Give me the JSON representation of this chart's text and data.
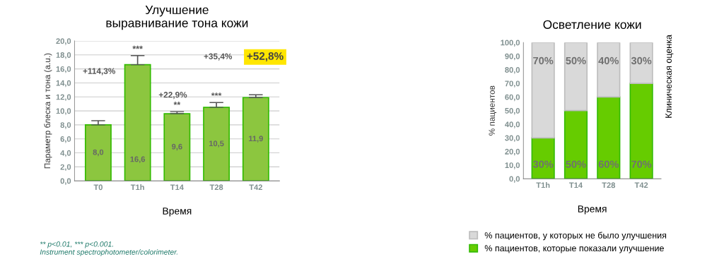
{
  "chart_data": [
    {
      "type": "bar",
      "title": "Улучшение\nвыравнивание тона кожи",
      "xlabel": "Время",
      "ylabel": "Параметр блеска и тона (a.u.)",
      "categories": [
        "T0",
        "T1h",
        "T14",
        "T28",
        "T42"
      ],
      "values": [
        8.0,
        16.6,
        9.6,
        10.5,
        11.9
      ],
      "color": "#8cc63f",
      "errors": [
        0.6,
        1.3,
        0.3,
        0.7,
        0.4
      ],
      "value_labels": [
        "8,0",
        "16,6",
        "9,6",
        "10,5",
        "11,9"
      ],
      "ylim": [
        0,
        20
      ],
      "yticks": [
        {
          "value": 0,
          "label": "0,0"
        },
        {
          "value": 2,
          "label": "2,0"
        },
        {
          "value": 4,
          "label": "4,0"
        },
        {
          "value": 6,
          "label": "6,0"
        },
        {
          "value": 8,
          "label": "8,0"
        },
        {
          "value": 10,
          "label": "10,0"
        },
        {
          "value": 12,
          "label": "12,0"
        },
        {
          "value": 14,
          "label": "14,0"
        },
        {
          "value": 16,
          "label": "16,0"
        },
        {
          "value": 18,
          "label": "18,0"
        },
        {
          "value": 20,
          "label": "20,0"
        }
      ],
      "grid": "y",
      "legend": false,
      "annotations": [
        {
          "text": "***",
          "x": "T1h",
          "y": 17.9
        },
        {
          "text": "**",
          "x": "T14",
          "y": 9.9
        },
        {
          "text": "***",
          "x": "T28",
          "y": 11.2
        },
        "+114,3%",
        "+22,9%",
        "+35,4%",
        "+52,8%",
        "** p<0.01, *** p<0.001.\nInstrument spectrophotometer/colorimeter."
      ]
    },
    {
      "type": "bar",
      "stacked": true,
      "title": "Осветление кожи",
      "xlabel": "Время",
      "ylabel": "% пациентов",
      "y2label": "Клиническая оценка",
      "categories": [
        "T1h",
        "T14",
        "T28",
        "T42"
      ],
      "series": [
        {
          "name": "% пациентов, которые показали улучшение",
          "color": "#66cc00",
          "values": [
            30,
            50,
            60,
            70
          ],
          "value_labels": [
            "30%",
            "50%",
            "60%",
            "70%"
          ]
        },
        {
          "name": "% пациентов, у которых не было улучшения",
          "color": "#d9d9d9",
          "values": [
            70,
            50,
            40,
            30
          ],
          "value_labels": [
            "70%",
            "50%",
            "40%",
            "30%"
          ]
        }
      ],
      "ylim": [
        0,
        100
      ],
      "yticks": [
        {
          "value": 0,
          "label": "0,0"
        },
        {
          "value": 10,
          "label": "10,0"
        },
        {
          "value": 20,
          "label": "20,0"
        },
        {
          "value": 30,
          "label": "30,0"
        },
        {
          "value": 40,
          "label": "40,0"
        },
        {
          "value": 50,
          "label": "50,0"
        },
        {
          "value": 60,
          "label": "60,0"
        },
        {
          "value": 70,
          "label": "70,0"
        },
        {
          "value": 80,
          "label": "80,0"
        },
        {
          "value": 90,
          "label": "90,0"
        },
        {
          "value": 100,
          "label": "100,0"
        }
      ],
      "grid": false,
      "legend": "bottom"
    }
  ]
}
